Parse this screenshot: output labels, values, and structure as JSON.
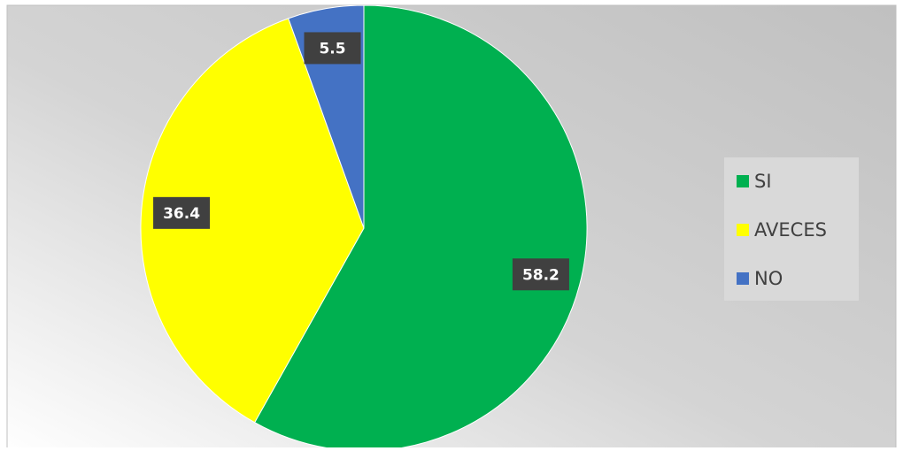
{
  "chart_data": {
    "type": "pie",
    "categories": [
      "SI",
      "AVECES",
      "NO"
    ],
    "series": [
      {
        "values": [
          58.2,
          36.4,
          5.5
        ],
        "colors": [
          "#00b050",
          "#ffff00",
          "#4472c4"
        ]
      }
    ],
    "legend": "right"
  }
}
